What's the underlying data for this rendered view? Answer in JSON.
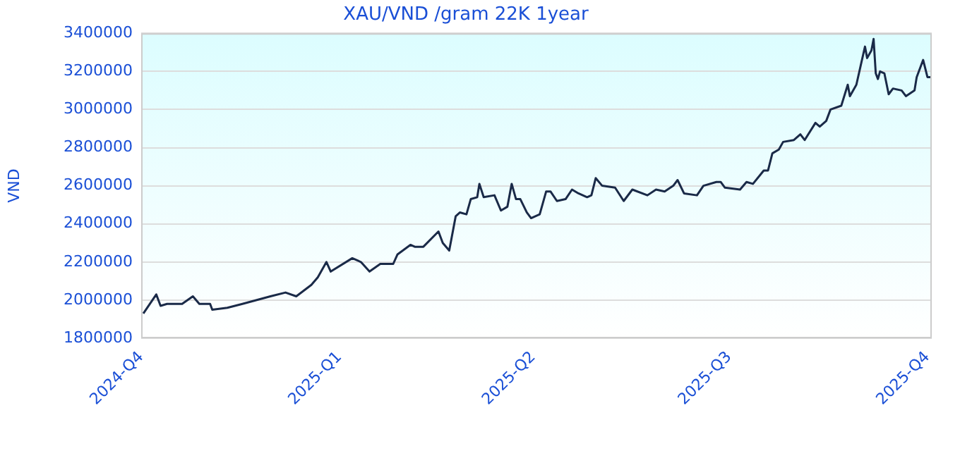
{
  "chart_data": {
    "type": "line",
    "title": "XAU/VND /gram 22K 1year",
    "ylabel": "VND",
    "x": [
      "2024-10-02",
      "2024-10-08",
      "2024-10-10",
      "2024-10-13",
      "2024-10-20",
      "2024-10-25",
      "2024-10-28",
      "2024-11-02",
      "2024-11-03",
      "2024-11-10",
      "2024-11-17",
      "2024-11-30",
      "2024-12-07",
      "2024-12-12",
      "2024-12-19",
      "2024-12-22",
      "2024-12-26",
      "2024-12-28",
      "2025-01-07",
      "2025-01-11",
      "2025-01-15",
      "2025-01-20",
      "2025-01-26",
      "2025-01-28",
      "2025-02-03",
      "2025-02-05",
      "2025-02-09",
      "2025-02-16",
      "2025-02-18",
      "2025-02-21",
      "2025-02-24",
      "2025-02-26",
      "2025-03-01",
      "2025-03-03",
      "2025-03-06",
      "2025-03-07",
      "2025-03-09",
      "2025-03-14",
      "2025-03-17",
      "2025-03-20",
      "2025-03-22",
      "2025-03-24",
      "2025-03-26",
      "2025-03-29",
      "2025-03-31",
      "2025-04-04",
      "2025-04-07",
      "2025-04-09",
      "2025-04-12",
      "2025-04-16",
      "2025-04-19",
      "2025-04-22",
      "2025-04-26",
      "2025-04-28",
      "2025-04-30",
      "2025-05-03",
      "2025-05-09",
      "2025-05-13",
      "2025-05-17",
      "2025-05-24",
      "2025-05-28",
      "2025-06-01",
      "2025-06-05",
      "2025-06-07",
      "2025-06-10",
      "2025-06-16",
      "2025-06-19",
      "2025-06-25",
      "2025-06-27",
      "2025-06-29",
      "2025-07-06",
      "2025-07-09",
      "2025-07-12",
      "2025-07-17",
      "2025-07-19",
      "2025-07-21",
      "2025-07-24",
      "2025-07-26",
      "2025-07-31",
      "2025-08-03",
      "2025-08-05",
      "2025-08-10",
      "2025-08-12",
      "2025-08-15",
      "2025-08-17",
      "2025-08-22",
      "2025-08-25",
      "2025-08-26",
      "2025-08-29",
      "2025-08-31",
      "2025-09-02",
      "2025-09-03",
      "2025-09-05",
      "2025-09-06",
      "2025-09-07",
      "2025-09-08",
      "2025-09-09",
      "2025-09-11",
      "2025-09-13",
      "2025-09-15",
      "2025-09-19",
      "2025-09-21",
      "2025-09-25",
      "2025-09-26",
      "2025-09-29",
      "2025-10-01",
      "2025-10-03"
    ],
    "series": [
      {
        "color": "#1a2a48",
        "values": [
          1930000,
          2030000,
          1970000,
          1980000,
          1980000,
          2020000,
          1980000,
          1980000,
          1950000,
          1960000,
          1980000,
          2020000,
          2040000,
          2020000,
          2080000,
          2120000,
          2200000,
          2150000,
          2220000,
          2200000,
          2150000,
          2190000,
          2190000,
          2240000,
          2290000,
          2280000,
          2280000,
          2360000,
          2300000,
          2260000,
          2440000,
          2460000,
          2450000,
          2530000,
          2540000,
          2610000,
          2540000,
          2550000,
          2470000,
          2490000,
          2610000,
          2530000,
          2530000,
          2460000,
          2430000,
          2450000,
          2570000,
          2570000,
          2520000,
          2530000,
          2580000,
          2560000,
          2540000,
          2550000,
          2640000,
          2600000,
          2590000,
          2520000,
          2580000,
          2550000,
          2580000,
          2570000,
          2600000,
          2630000,
          2560000,
          2550000,
          2600000,
          2620000,
          2620000,
          2590000,
          2580000,
          2620000,
          2610000,
          2680000,
          2680000,
          2770000,
          2790000,
          2830000,
          2840000,
          2870000,
          2840000,
          2930000,
          2910000,
          2940000,
          3000000,
          3020000,
          3130000,
          3070000,
          3130000,
          3230000,
          3330000,
          3270000,
          3310000,
          3370000,
          3190000,
          3160000,
          3200000,
          3190000,
          3080000,
          3110000,
          3100000,
          3070000,
          3100000,
          3170000,
          3260000,
          3170000,
          3170000
        ]
      }
    ],
    "xlim": [
      "2024-10-01",
      "2025-10-03"
    ],
    "xticks": [
      {
        "value": "2024-10-01",
        "label": "2024-Q4"
      },
      {
        "value": "2025-01-01",
        "label": "2025-Q1"
      },
      {
        "value": "2025-04-01",
        "label": "2025-Q2"
      },
      {
        "value": "2025-07-01",
        "label": "2025-Q3"
      },
      {
        "value": "2025-10-01",
        "label": "2025-Q4"
      }
    ],
    "ylim": [
      1800000,
      3400000
    ],
    "yticks": [
      1800000,
      2000000,
      2200000,
      2400000,
      2600000,
      2800000,
      3000000,
      3200000,
      3400000
    ],
    "grid": "y",
    "legend": false,
    "marker": "none",
    "line_style": "solid"
  }
}
